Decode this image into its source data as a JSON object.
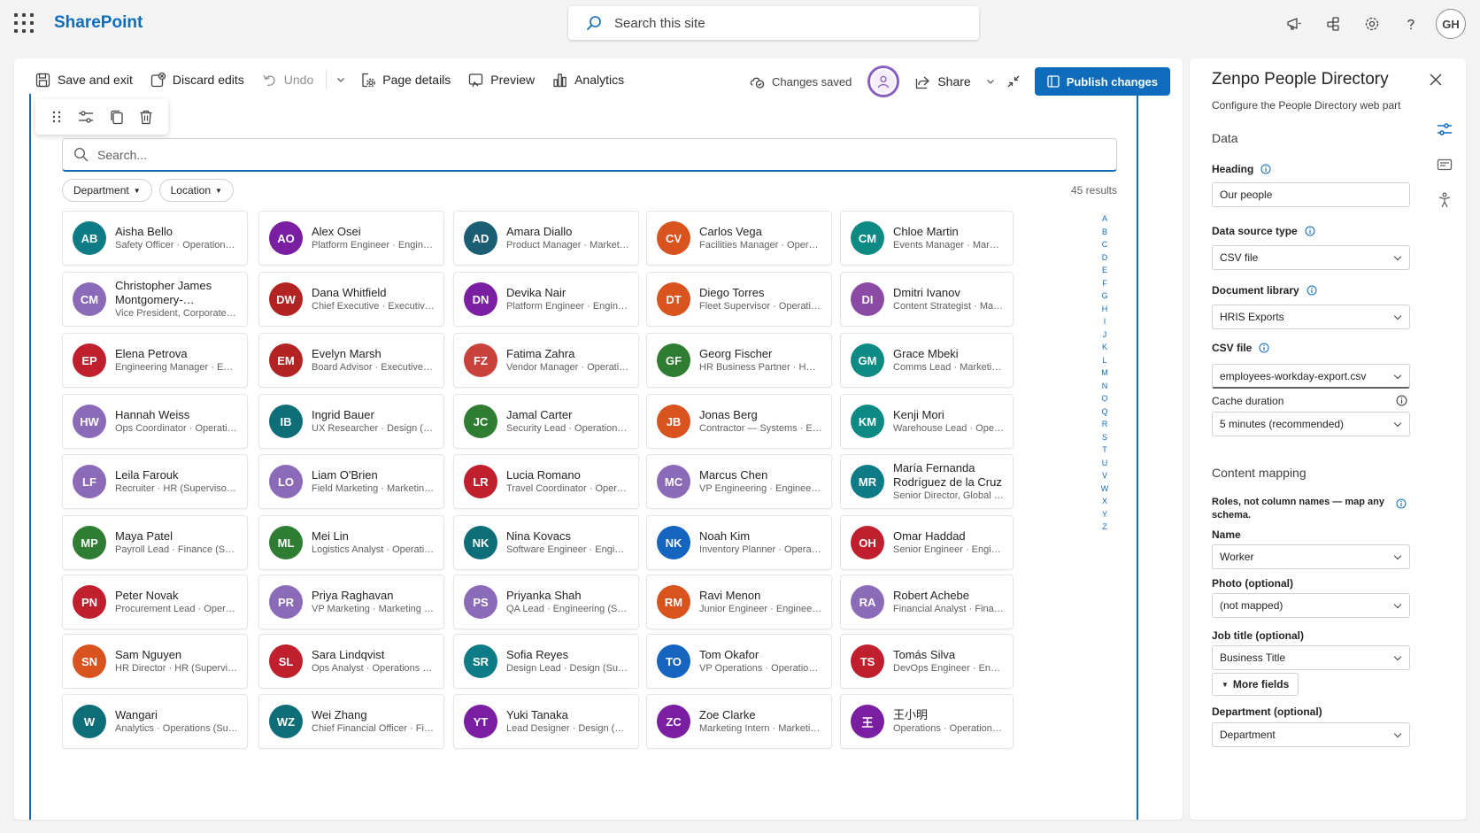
{
  "suite": {
    "brand": "SharePoint",
    "search_placeholder": "Search this site",
    "user_initials": "GH"
  },
  "commands": {
    "save_exit": "Save and exit",
    "discard": "Discard edits",
    "undo": "Undo",
    "page_details": "Page details",
    "preview": "Preview",
    "analytics": "Analytics",
    "status": "Changes saved",
    "share": "Share",
    "publish": "Publish changes"
  },
  "directory": {
    "search_placeholder": "Search...",
    "filters": [
      "Department",
      "Location"
    ],
    "results": "45 results",
    "az": [
      "A",
      "B",
      "C",
      "D",
      "E",
      "F",
      "G",
      "H",
      "I",
      "J",
      "K",
      "L",
      "M",
      "N",
      "O",
      "Q",
      "R",
      "S",
      "T",
      "U",
      "V",
      "W",
      "X",
      "Y",
      "Z"
    ],
    "people": [
      {
        "i": "AB",
        "n": "Aisha Bello",
        "s": "Safety Officer · Operations (Supervisory Org)",
        "c": "#0e7c86"
      },
      {
        "i": "AO",
        "n": "Alex Osei",
        "s": "Platform Engineer · Engineering (Supervisory Org)",
        "c": "#7a1fa2"
      },
      {
        "i": "AD",
        "n": "Amara Diallo",
        "s": "Product Manager · Marketing (Supervisory Org)",
        "c": "#1b5e73"
      },
      {
        "i": "CV",
        "n": "Carlos Vega",
        "s": "Facilities Manager · Operations (Supervisory Org)",
        "c": "#d9531e"
      },
      {
        "i": "CM",
        "n": "Chloe Martin",
        "s": "Events Manager · Marketing (Supervisory Org)",
        "c": "#0e8a84"
      },
      {
        "i": "CM",
        "n": "Christopher James Montgomery-…",
        "s": "Vice President, Corporate Strategy",
        "c": "#8b6bb8",
        "w": true
      },
      {
        "i": "DW",
        "n": "Dana Whitfield",
        "s": "Chief Executive · Executive (Supervisory Org)",
        "c": "#b42323"
      },
      {
        "i": "DN",
        "n": "Devika Nair",
        "s": "Platform Engineer · Engineering (Supervisory Org)",
        "c": "#7a1fa2"
      },
      {
        "i": "DT",
        "n": "Diego Torres",
        "s": "Fleet Supervisor · Operations (Supervisory Org)",
        "c": "#d9531e"
      },
      {
        "i": "DI",
        "n": "Dmitri Ivanov",
        "s": "Content Strategist · Marketing (Supervisory Org)",
        "c": "#8b4aa3"
      },
      {
        "i": "EP",
        "n": "Elena Petrova",
        "s": "Engineering Manager · Engineering (Supervisory Org)",
        "c": "#c01f2e"
      },
      {
        "i": "EM",
        "n": "Evelyn Marsh",
        "s": "Board Advisor · Executive (Supervisory Org)",
        "c": "#b42323"
      },
      {
        "i": "FZ",
        "n": "Fatima Zahra",
        "s": "Vendor Manager · Operations (Supervisory Org)",
        "c": "#c8413a"
      },
      {
        "i": "GF",
        "n": "Georg Fischer",
        "s": "HR Business Partner · HR (Supervisory Org)",
        "c": "#2e7d32"
      },
      {
        "i": "GM",
        "n": "Grace Mbeki",
        "s": "Comms Lead · Marketing (Supervisory Org)",
        "c": "#0e8a84"
      },
      {
        "i": "HW",
        "n": "Hannah Weiss",
        "s": "Ops Coordinator · Operations (Supervisory Org)",
        "c": "#8b6bb8"
      },
      {
        "i": "IB",
        "n": "Ingrid Bauer",
        "s": "UX Researcher · Design (Supervisory Org)",
        "c": "#0e6e78"
      },
      {
        "i": "JC",
        "n": "Jamal Carter",
        "s": "Security Lead · Operations (Supervisory Org)",
        "c": "#2e7d32"
      },
      {
        "i": "JB",
        "n": "Jonas Berg",
        "s": "Contractor — Systems · Engineering (Supervisory Org)",
        "c": "#d9531e"
      },
      {
        "i": "KM",
        "n": "Kenji Mori",
        "s": "Warehouse Lead · Operations (Supervisory Org)",
        "c": "#0e8a84"
      },
      {
        "i": "LF",
        "n": "Leila Farouk",
        "s": "Recruiter · HR (Supervisory Org)",
        "c": "#8b6bb8"
      },
      {
        "i": "LO",
        "n": "Liam O'Brien",
        "s": "Field Marketing · Marketing (Supervisory Org)",
        "c": "#8b6bb8"
      },
      {
        "i": "LR",
        "n": "Lucia Romano",
        "s": "Travel Coordinator · Operations (Supervisory Org)",
        "c": "#c01f2e"
      },
      {
        "i": "MC",
        "n": "Marcus Chen",
        "s": "VP Engineering · Engineering (Supervisory Org)",
        "c": "#8b6bb8"
      },
      {
        "i": "MR",
        "n": "María Fernanda Rodríguez de la Cruz",
        "s": "Senior Director, Global Supply Chain",
        "c": "#0e7c86",
        "w": true
      },
      {
        "i": "MP",
        "n": "Maya Patel",
        "s": "Payroll Lead · Finance (Supervisory Org)",
        "c": "#2e7d32"
      },
      {
        "i": "ML",
        "n": "Mei Lin",
        "s": "Logistics Analyst · Operations (Supervisory Org)",
        "c": "#2e7d32"
      },
      {
        "i": "NK",
        "n": "Nina Kovacs",
        "s": "Software Engineer · Engineering (Supervisory Org)",
        "c": "#0e6e78"
      },
      {
        "i": "NK",
        "n": "Noah Kim",
        "s": "Inventory Planner · Operations (Supervisory Org)",
        "c": "#1565c0"
      },
      {
        "i": "OH",
        "n": "Omar Haddad",
        "s": "Senior Engineer · Engineering (Supervisory Org)",
        "c": "#c01f2e"
      },
      {
        "i": "PN",
        "n": "Peter Novak",
        "s": "Procurement Lead · Operations (Supervisory Org)",
        "c": "#c01f2e"
      },
      {
        "i": "PR",
        "n": "Priya Raghavan",
        "s": "VP Marketing · Marketing (Supervisory Org)",
        "c": "#8b6bb8"
      },
      {
        "i": "PS",
        "n": "Priyanka Shah",
        "s": "QA Lead · Engineering (Supervisory Org)",
        "c": "#8b6bb8"
      },
      {
        "i": "RM",
        "n": "Ravi Menon",
        "s": "Junior Engineer · Engineering (Supervisory Org)",
        "c": "#d9531e"
      },
      {
        "i": "RA",
        "n": "Robert Achebe",
        "s": "Financial Analyst · Finance (Supervisory Org)",
        "c": "#8b6bb8"
      },
      {
        "i": "SN",
        "n": "Sam Nguyen",
        "s": "HR Director · HR (Supervisory Org)",
        "c": "#d9531e"
      },
      {
        "i": "SL",
        "n": "Sara Lindqvist",
        "s": "Ops Analyst · Operations (Supervisory Org)",
        "c": "#c01f2e"
      },
      {
        "i": "SR",
        "n": "Sofia Reyes",
        "s": "Design Lead · Design (Supervisory Org)",
        "c": "#0e7c86"
      },
      {
        "i": "TO",
        "n": "Tom Okafor",
        "s": "VP Operations · Operations (Supervisory Org)",
        "c": "#1565c0"
      },
      {
        "i": "TS",
        "n": "Tomás Silva",
        "s": "DevOps Engineer · Engineering (Supervisory Org)",
        "c": "#c01f2e"
      },
      {
        "i": "W",
        "n": "Wangari",
        "s": "Analytics · Operations (Supervisory Org)",
        "c": "#0e6e78"
      },
      {
        "i": "WZ",
        "n": "Wei Zhang",
        "s": "Chief Financial Officer · Finance (Supervisory Org)",
        "c": "#0e6e78"
      },
      {
        "i": "YT",
        "n": "Yuki Tanaka",
        "s": "Lead Designer · Design (Supervisory Org)",
        "c": "#7a1fa2"
      },
      {
        "i": "ZC",
        "n": "Zoe Clarke",
        "s": "Marketing Intern · Marketing (Supervisory Org)",
        "c": "#7a1fa2"
      },
      {
        "i": "王",
        "n": "王小明",
        "s": "Operations · Operations (Supervisory Org)",
        "c": "#7a1fa2"
      }
    ]
  },
  "pane": {
    "title": "Zenpo People Directory",
    "description": "Configure the People Directory web part",
    "section_data": "Data",
    "heading_label": "Heading",
    "heading_value": "Our people",
    "source_label": "Data source type",
    "source_value": "CSV file",
    "library_label": "Document library",
    "library_value": "HRIS Exports",
    "csv_label": "CSV file",
    "csv_value": "employees-workday-export.csv",
    "cache_label": "Cache duration",
    "cache_value": "5 minutes (recommended)",
    "section_mapping": "Content mapping",
    "mapping_note": "Roles, not column names — map any schema.",
    "name_label": "Name",
    "name_value": "Worker",
    "photo_label": "Photo (optional)",
    "photo_value": "(not mapped)",
    "job_label": "Job title (optional)",
    "job_value": "Business Title",
    "more_fields": "More fields",
    "dept_label": "Department (optional)",
    "dept_value": "Department"
  }
}
